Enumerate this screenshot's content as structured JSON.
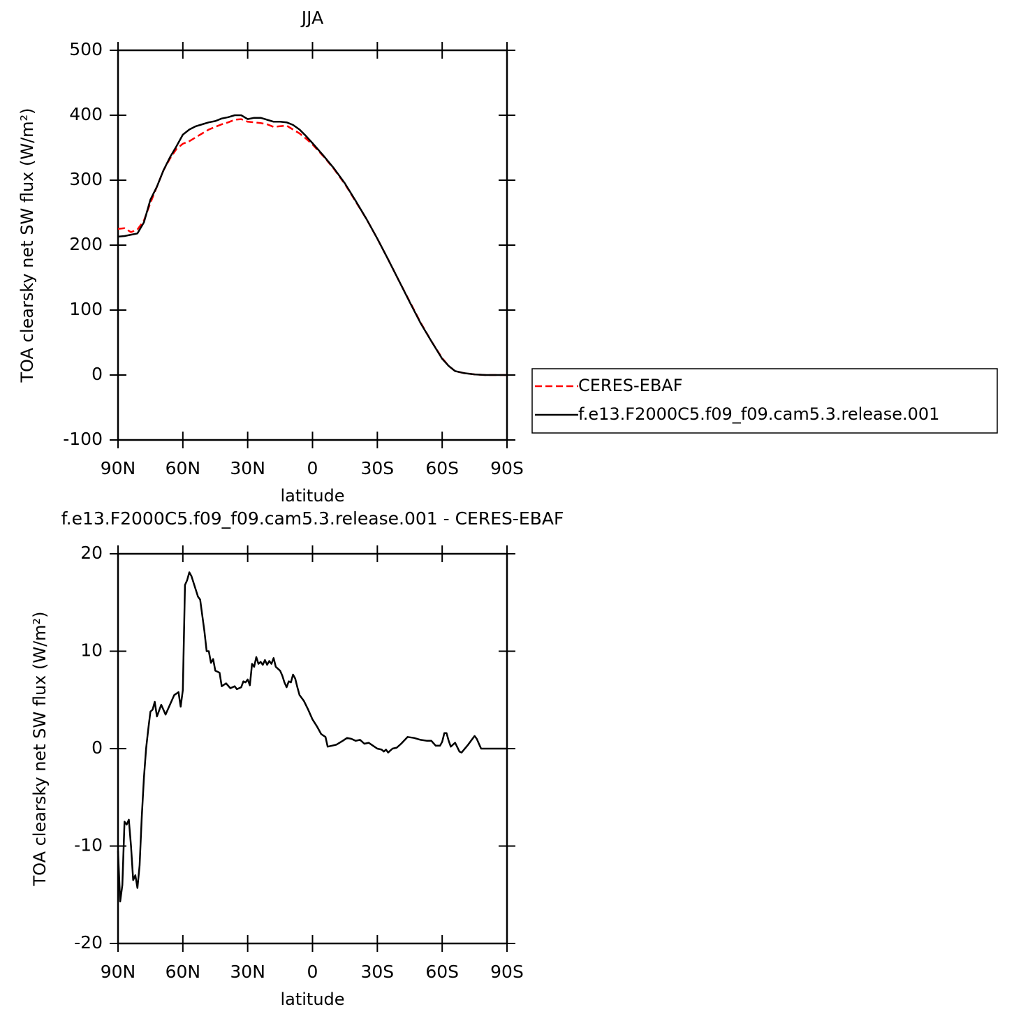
{
  "chart_data": [
    {
      "type": "line",
      "title": "JJA",
      "x_label": "latitude",
      "y_label": "TOA clearsky net SW flux (W/m²)",
      "xlim": [
        90,
        -90
      ],
      "xticks": [
        {
          "value": 90,
          "label": "90N"
        },
        {
          "value": 60,
          "label": "60N"
        },
        {
          "value": 30,
          "label": "30N"
        },
        0,
        {
          "value": -30,
          "label": "30S"
        },
        {
          "value": -60,
          "label": "60S"
        },
        {
          "value": -90,
          "label": "90S"
        }
      ],
      "ylim": [
        -100,
        500
      ],
      "yticks": [
        -100,
        0,
        100,
        200,
        300,
        400,
        500
      ],
      "legend": "right",
      "x": [
        90,
        87,
        84,
        81,
        78,
        75,
        72,
        69,
        66,
        63,
        60,
        57,
        54,
        51,
        48,
        45,
        42,
        39,
        36,
        33,
        30,
        27,
        24,
        21,
        18,
        15,
        12,
        9,
        6,
        3,
        0,
        -5,
        -10,
        -15,
        -20,
        -25,
        -30,
        -35,
        -40,
        -45,
        -50,
        -55,
        -60,
        -63,
        -66,
        -70,
        -75,
        -80,
        -85,
        -90
      ],
      "series": [
        {
          "name": "CERES-EBAF",
          "color": "#ff0000",
          "dash": true,
          "values": [
            225,
            226,
            220,
            224,
            238,
            265,
            290,
            315,
            333,
            348,
            356,
            360,
            366,
            372,
            378,
            382,
            386,
            389,
            393,
            394,
            390,
            389,
            388,
            386,
            382,
            383,
            384,
            378,
            372,
            364,
            355,
            337,
            317,
            294,
            267,
            240,
            210,
            178,
            145,
            113,
            81,
            52,
            26,
            14,
            6,
            3,
            1,
            0,
            0,
            0
          ]
        },
        {
          "name": "f.e13.F2000C5.f09_f09.cam5.3.release.001",
          "color": "#000000",
          "dash": false,
          "values": [
            213,
            214,
            216,
            218,
            235,
            270,
            290,
            315,
            335,
            352,
            370,
            378,
            383,
            386,
            389,
            391,
            395,
            397,
            400,
            400,
            394,
            396,
            396,
            393,
            390,
            390,
            389,
            385,
            378,
            368,
            357,
            338,
            318,
            295,
            268,
            240,
            210,
            178,
            145,
            112,
            80,
            52,
            25,
            14,
            6,
            3,
            1,
            0,
            0,
            0
          ]
        }
      ]
    },
    {
      "type": "line",
      "title": "f.e13.F2000C5.f09_f09.cam5.3.release.001 - CERES-EBAF",
      "x_label": "latitude",
      "y_label": "TOA clearsky net SW flux (W/m²)",
      "xlim": [
        90,
        -90
      ],
      "xticks": [
        {
          "value": 90,
          "label": "90N"
        },
        {
          "value": 60,
          "label": "60N"
        },
        {
          "value": 30,
          "label": "30N"
        },
        0,
        {
          "value": -30,
          "label": "30S"
        },
        {
          "value": -60,
          "label": "60S"
        },
        {
          "value": -90,
          "label": "90S"
        }
      ],
      "ylim": [
        -20,
        20
      ],
      "yticks": [
        -20,
        -10,
        0,
        10,
        20
      ],
      "x": [
        90,
        89,
        88,
        87,
        86,
        85,
        84,
        83,
        82,
        81,
        80,
        79,
        78,
        77,
        76,
        75,
        74,
        73,
        72,
        70,
        68,
        66,
        64,
        62,
        61,
        60,
        59,
        58,
        57,
        56,
        55,
        53,
        52,
        50,
        49,
        48,
        47,
        46,
        45,
        43,
        42,
        40,
        38,
        36,
        35,
        33,
        32,
        31,
        30,
        29,
        28,
        27,
        26,
        25,
        24,
        23,
        22,
        21,
        20,
        19,
        18,
        17,
        15,
        14,
        13,
        12,
        11,
        10,
        9,
        8,
        7,
        6,
        4,
        2,
        0,
        -2,
        -4,
        -6,
        -7,
        -9,
        -11,
        -14,
        -16,
        -18,
        -20,
        -22,
        -24,
        -26,
        -28,
        -30,
        -32,
        -33,
        -34,
        -35,
        -37,
        -39,
        -41,
        -44,
        -47,
        -50,
        -53,
        -55,
        -57,
        -59,
        -60,
        -61,
        -62,
        -63,
        -64,
        -66,
        -68,
        -69,
        -72,
        -75,
        -76,
        -78,
        -80,
        -85,
        -90
      ],
      "series": [
        {
          "color": "#000000",
          "values": [
            -10.5,
            -15.7,
            -14,
            -7.5,
            -7.8,
            -7.3,
            -10,
            -13.5,
            -13,
            -14.3,
            -12,
            -7,
            -3,
            0,
            2,
            3.8,
            4,
            4.8,
            3.3,
            4.5,
            3.5,
            4.5,
            5.5,
            5.8,
            4.3,
            6,
            16.8,
            17.3,
            18.1,
            17.7,
            17,
            15.6,
            15.3,
            12,
            10,
            10,
            8.8,
            9.2,
            8,
            7.8,
            6.4,
            6.7,
            6.2,
            6.4,
            6.1,
            6.3,
            6.9,
            6.8,
            7.1,
            6.5,
            8.7,
            8.4,
            9.4,
            8.7,
            8.9,
            8.6,
            9.1,
            8.6,
            9,
            8.7,
            9.3,
            8.4,
            8,
            7.5,
            6.8,
            6.3,
            6.9,
            6.8,
            7.6,
            7.2,
            6.3,
            5.5,
            4.9,
            4,
            3,
            2.3,
            1.5,
            1.2,
            0.2,
            0.3,
            0.4,
            0.8,
            1.1,
            1,
            0.8,
            0.9,
            0.5,
            0.6,
            0.3,
            0,
            -0.1,
            -0.3,
            -0.1,
            -0.4,
            0,
            0.1,
            0.5,
            1.2,
            1.1,
            0.9,
            0.8,
            0.8,
            0.3,
            0.3,
            0.7,
            1.6,
            1.6,
            0.8,
            0.2,
            0.6,
            -0.3,
            -0.4,
            0.4,
            1.3,
            1,
            0,
            0,
            0,
            0
          ]
        }
      ]
    }
  ]
}
